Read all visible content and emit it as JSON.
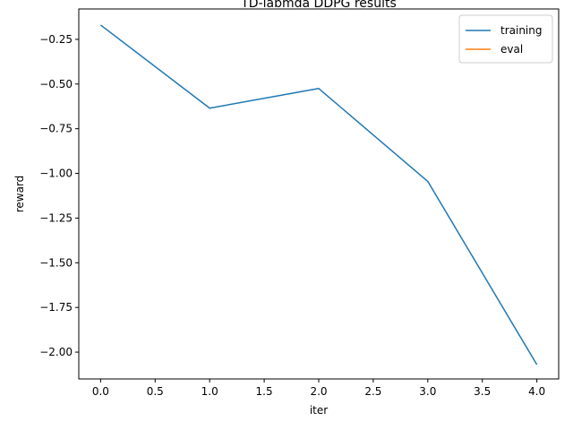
{
  "chart_data": {
    "type": "line",
    "title": "TD-labmda DDPG results",
    "xlabel": "iter",
    "ylabel": "reward",
    "xlim": [
      -0.2,
      4.2
    ],
    "ylim": [
      -2.15,
      -0.08
    ],
    "xticks": [
      0.0,
      0.5,
      1.0,
      1.5,
      2.0,
      2.5,
      3.0,
      3.5,
      4.0
    ],
    "xtick_labels": [
      "0.0",
      "0.5",
      "1.0",
      "1.5",
      "2.0",
      "2.5",
      "3.0",
      "3.5",
      "4.0"
    ],
    "yticks": [
      -0.25,
      -0.5,
      -0.75,
      -1.0,
      -1.25,
      -1.5,
      -1.75,
      -2.0
    ],
    "ytick_labels": [
      "−0.25",
      "−0.50",
      "−0.75",
      "−1.00",
      "−1.25",
      "−1.50",
      "−1.75",
      "−2.00"
    ],
    "grid": false,
    "legend_position": "top-right",
    "series": [
      {
        "name": "training",
        "color": "#1f77b4",
        "x": [
          0,
          1,
          2,
          3,
          4
        ],
        "y": [
          -0.17,
          -0.635,
          -0.525,
          -1.045,
          -2.07
        ]
      },
      {
        "name": "eval",
        "color": "#ff7f0e",
        "x": [],
        "y": []
      }
    ]
  }
}
